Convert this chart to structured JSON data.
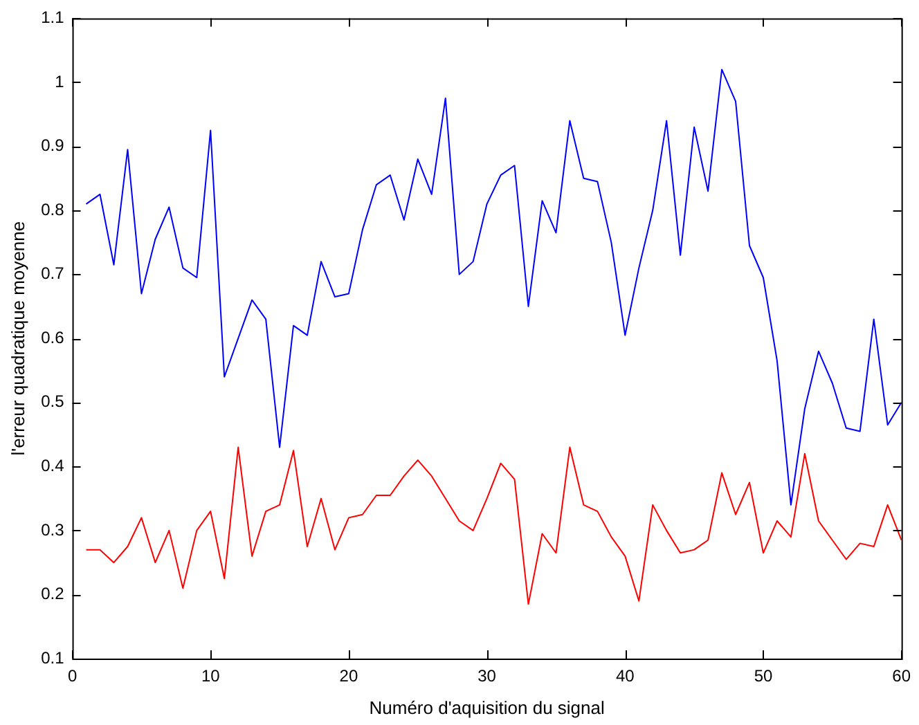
{
  "chart_data": {
    "type": "line",
    "xlabel": "Numéro d'aquisition du signal",
    "ylabel": "l'erreur quadratique moyenne",
    "x": [
      1,
      2,
      3,
      4,
      5,
      6,
      7,
      8,
      9,
      10,
      11,
      12,
      13,
      14,
      15,
      16,
      17,
      18,
      19,
      20,
      21,
      22,
      23,
      24,
      25,
      26,
      27,
      28,
      29,
      30,
      31,
      32,
      33,
      34,
      35,
      36,
      37,
      38,
      39,
      40,
      41,
      42,
      43,
      44,
      45,
      46,
      47,
      48,
      49,
      50,
      51,
      52,
      53,
      54,
      55,
      56,
      57,
      58,
      59,
      60
    ],
    "series": [
      {
        "color": "#0000ff",
        "values": [
          0.81,
          0.825,
          0.715,
          0.895,
          0.67,
          0.755,
          0.805,
          0.71,
          0.695,
          0.925,
          0.54,
          0.6,
          0.66,
          0.63,
          0.43,
          0.62,
          0.605,
          0.72,
          0.665,
          0.67,
          0.77,
          0.84,
          0.855,
          0.785,
          0.88,
          0.825,
          0.975,
          0.7,
          0.72,
          0.81,
          0.855,
          0.87,
          0.65,
          0.815,
          0.765,
          0.94,
          0.85,
          0.845,
          0.75,
          0.605,
          0.71,
          0.8,
          0.94,
          0.73,
          0.93,
          0.83,
          1.02,
          0.97,
          0.745,
          0.695,
          0.565,
          0.34,
          0.49,
          0.58,
          0.53,
          0.46,
          0.455,
          0.63,
          0.465,
          0.5
        ]
      },
      {
        "color": "#ff0000",
        "values": [
          0.27,
          0.27,
          0.25,
          0.275,
          0.32,
          0.25,
          0.3,
          0.21,
          0.3,
          0.33,
          0.225,
          0.43,
          0.26,
          0.33,
          0.34,
          0.425,
          0.275,
          0.35,
          0.27,
          0.32,
          0.325,
          0.355,
          0.355,
          0.385,
          0.41,
          0.385,
          0.35,
          0.315,
          0.3,
          0.35,
          0.405,
          0.38,
          0.185,
          0.295,
          0.265,
          0.43,
          0.34,
          0.33,
          0.29,
          0.26,
          0.19,
          0.34,
          0.3,
          0.265,
          0.27,
          0.285,
          0.39,
          0.325,
          0.375,
          0.265,
          0.315,
          0.29,
          0.42,
          0.315,
          0.285,
          0.255,
          0.28,
          0.275,
          0.34,
          0.285
        ]
      }
    ],
    "xlim": [
      0,
      60
    ],
    "xticks": [
      0,
      10,
      20,
      30,
      40,
      50,
      60
    ],
    "ylim": [
      0.1,
      1.1
    ],
    "yticks": [
      0.1,
      0.2,
      0.3,
      0.4,
      0.5,
      0.6,
      0.7,
      0.8,
      0.9,
      1,
      1.1
    ],
    "grid": false,
    "legend": false,
    "marker": "none",
    "line_style": "solid"
  }
}
